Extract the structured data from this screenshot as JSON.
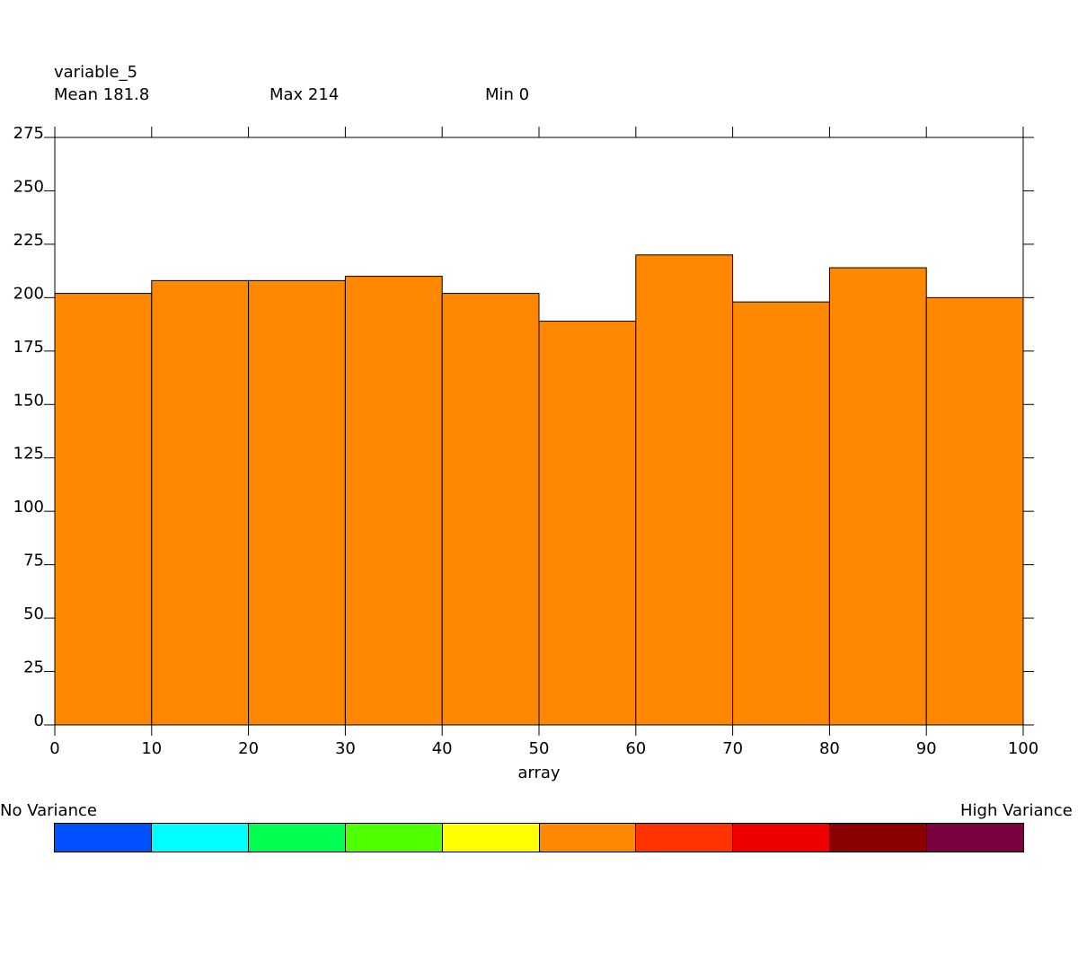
{
  "header": {
    "variable": "variable_5",
    "mean_label": "Mean 181.8",
    "max_label": "Max 214",
    "min_label": "Min 0"
  },
  "chart_data": {
    "type": "bar",
    "title": "variable_5",
    "xlabel": "array",
    "ylabel": "",
    "bin_edges": [
      0,
      10,
      20,
      30,
      40,
      50,
      60,
      70,
      80,
      90,
      100
    ],
    "values": [
      202,
      208,
      208,
      210,
      202,
      189,
      220,
      198,
      214,
      200
    ],
    "xlim": [
      0,
      100
    ],
    "ylim": [
      0,
      275
    ],
    "x_ticks": [
      "0",
      "10",
      "20",
      "30",
      "40",
      "50",
      "60",
      "70",
      "80",
      "90",
      "100"
    ],
    "y_ticks": [
      "0",
      "25",
      "50",
      "75",
      "100",
      "125",
      "150",
      "175",
      "200",
      "225",
      "250",
      "275"
    ],
    "bar_color": "#ff8800",
    "grid": false
  },
  "legend": {
    "low_label": "No Variance",
    "high_label": "High Variance",
    "colors": [
      "#0050ff",
      "#00ffff",
      "#00ff50",
      "#50ff00",
      "#ffff00",
      "#ff8800",
      "#ff3300",
      "#ee0000",
      "#8b0000",
      "#7b0040"
    ]
  }
}
